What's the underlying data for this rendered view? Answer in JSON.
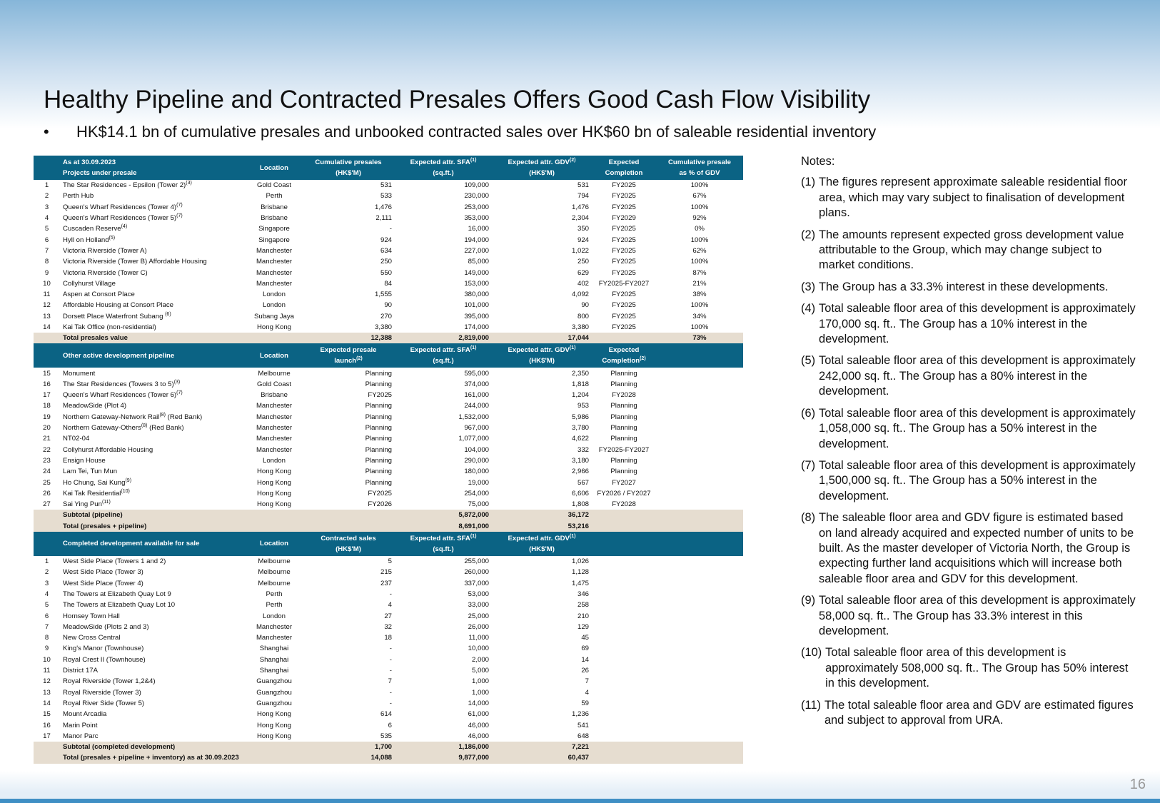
{
  "title": "Healthy Pipeline and Contracted Presales Offers Good Cash Flow Visibility",
  "bullet": {
    "marker": "•",
    "text": "HK$14.1 bn of cumulative presales and unbooked contracted sales over HK$60 bn of saleable residential inventory"
  },
  "table": {
    "sections": [
      {
        "header": [
          null,
          [
            "As at 30.09.2023",
            "Projects under presale"
          ],
          [
            "Location"
          ],
          [
            "Cumulative presales",
            "(HK$'M)"
          ],
          [
            [
              "Expected attr. SFA",
              "(1)"
            ],
            "(sq.ft.)"
          ],
          [
            [
              "Expected attr. GDV",
              "(2)"
            ],
            "(HK$'M)"
          ],
          [
            "Expected",
            "Completion"
          ],
          [
            "Cumulative presale",
            "as % of GDV"
          ]
        ],
        "rows": [
          [
            "1",
            [
              "The Star Residences - Epsilon (Tower 2)",
              "(3)"
            ],
            "Gold Coast",
            "531",
            "109,000",
            "531",
            "FY2025",
            "100%"
          ],
          [
            "2",
            "Perth Hub",
            "Perth",
            "533",
            "230,000",
            "794",
            "FY2025",
            "67%"
          ],
          [
            "3",
            [
              "Queen's Wharf Residences (Tower 4)",
              "(7)"
            ],
            "Brisbane",
            "1,476",
            "253,000",
            "1,476",
            "FY2025",
            "100%"
          ],
          [
            "4",
            [
              "Queen's Wharf Residences (Tower 5)",
              "(7)"
            ],
            "Brisbane",
            "2,111",
            "353,000",
            "2,304",
            "FY2029",
            "92%"
          ],
          [
            "5",
            [
              "Cuscaden Reserve",
              "(4)"
            ],
            "Singapore",
            "-",
            "16,000",
            "350",
            "FY2025",
            "0%"
          ],
          [
            "6",
            [
              "Hyll on Holland",
              "(5)"
            ],
            "Singapore",
            "924",
            "194,000",
            "924",
            "FY2025",
            "100%"
          ],
          [
            "7",
            "Victoria Riverside (Tower A)",
            "Manchester",
            "634",
            "227,000",
            "1,022",
            "FY2025",
            "62%"
          ],
          [
            "8",
            "Victoria Riverside (Tower B) Affordable Housing",
            "Manchester",
            "250",
            "85,000",
            "250",
            "FY2025",
            "100%"
          ],
          [
            "9",
            "Victoria Riverside (Tower C)",
            "Manchester",
            "550",
            "149,000",
            "629",
            "FY2025",
            "87%"
          ],
          [
            "10",
            "Collyhurst Village",
            "Manchester",
            "84",
            "153,000",
            "402",
            "FY2025-FY2027",
            "21%"
          ],
          [
            "11",
            "Aspen at Consort Place",
            "London",
            "1,555",
            "380,000",
            "4,092",
            "FY2025",
            "38%"
          ],
          [
            "12",
            "Affordable Housing at Consort Place",
            "London",
            "90",
            "101,000",
            "90",
            "FY2025",
            "100%"
          ],
          [
            "13",
            [
              "Dorsett Place Waterfront Subang ",
              "(6)"
            ],
            "Subang Jaya",
            "270",
            "395,000",
            "800",
            "FY2025",
            "34%"
          ],
          [
            "14",
            "Kai Tak Office (non-residential)",
            "Hong Kong",
            "3,380",
            "174,000",
            "3,380",
            "FY2025",
            "100%"
          ]
        ],
        "totals": [
          [
            null,
            "Total presales value",
            null,
            "12,388",
            "2,819,000",
            "17,044",
            null,
            "73%"
          ]
        ]
      },
      {
        "header": [
          null,
          [
            "Other active development pipeline"
          ],
          [
            "Location"
          ],
          [
            "Expected presale",
            [
              "launch",
              "(2)"
            ]
          ],
          [
            [
              "Expected attr. SFA",
              "(1)"
            ],
            "(sq.ft.)"
          ],
          [
            [
              "Expected attr. GDV",
              "(1)"
            ],
            "(HK$'M)"
          ],
          [
            "Expected",
            [
              "Completion",
              "(2)"
            ]
          ],
          null
        ],
        "rows": [
          [
            "15",
            "Monument",
            "Melbourne",
            "Planning",
            "595,000",
            "2,350",
            "Planning"
          ],
          [
            "16",
            [
              "The Star Residences (Towers 3 to 5)",
              "(3)"
            ],
            "Gold Coast",
            "Planning",
            "374,000",
            "1,818",
            "Planning"
          ],
          [
            "17",
            [
              "Queen's Wharf Residences (Tower 6)",
              "(7)"
            ],
            "Brisbane",
            "FY2025",
            "161,000",
            "1,204",
            "FY2028"
          ],
          [
            "18",
            "MeadowSide (Plot 4)",
            "Manchester",
            "Planning",
            "244,000",
            "953",
            "Planning"
          ],
          [
            "19",
            [
              "Northern Gateway-Network Rail",
              "(8)",
              " (Red Bank)"
            ],
            "Manchester",
            "Planning",
            "1,532,000",
            "5,986",
            "Planning"
          ],
          [
            "20",
            [
              "Northern Gateway-Others",
              "(8)",
              " (Red Bank)"
            ],
            "Manchester",
            "Planning",
            "967,000",
            "3,780",
            "Planning"
          ],
          [
            "21",
            "NT02-04",
            "Manchester",
            "Planning",
            "1,077,000",
            "4,622",
            "Planning"
          ],
          [
            "22",
            "Collyhurst Affordable Housing",
            "Manchester",
            "Planning",
            "104,000",
            "332",
            "FY2025-FY2027"
          ],
          [
            "23",
            "Ensign House",
            "London",
            "Planning",
            "290,000",
            "3,180",
            "Planning"
          ],
          [
            "24",
            "Lam Tei, Tun Mun",
            "Hong Kong",
            "Planning",
            "180,000",
            "2,966",
            "Planning"
          ],
          [
            "25",
            [
              "Ho Chung, Sai Kung",
              "(9)"
            ],
            "Hong Kong",
            "Planning",
            "19,000",
            "567",
            "FY2027"
          ],
          [
            "26",
            [
              "Kai Tak Residential",
              "(10)"
            ],
            "Hong Kong",
            "FY2025",
            "254,000",
            "6,606",
            "FY2026 / FY2027"
          ],
          [
            "27",
            [
              "Sai Ying Pun",
              "(11)"
            ],
            "Hong Kong",
            "FY2026",
            "75,000",
            "1,808",
            "FY2028"
          ]
        ],
        "totals": [
          [
            null,
            "Subtotal (pipeline)",
            null,
            null,
            "5,872,000",
            "36,172"
          ],
          [
            null,
            "Total (presales + pipeline)",
            null,
            null,
            "8,691,000",
            "53,216"
          ]
        ]
      },
      {
        "header": [
          null,
          [
            "Completed development available for sale"
          ],
          [
            "Location"
          ],
          [
            "Contracted sales",
            "(HK$'M)"
          ],
          [
            [
              "Expected attr. SFA",
              "(1)"
            ],
            "(sq.ft.)"
          ],
          [
            [
              "Expected attr. GDV",
              "(1)"
            ],
            "(HK$'M)"
          ],
          null,
          null
        ],
        "rows": [
          [
            "1",
            "West Side Place (Towers 1 and 2)",
            "Melbourne",
            "5",
            "255,000",
            "1,026"
          ],
          [
            "2",
            "West Side Place (Tower 3)",
            "Melbourne",
            "215",
            "260,000",
            "1,128"
          ],
          [
            "3",
            "West Side Place (Tower 4)",
            "Melbourne",
            "237",
            "337,000",
            "1,475"
          ],
          [
            "4",
            "The Towers at Elizabeth Quay Lot 9",
            "Perth",
            "-",
            "53,000",
            "346"
          ],
          [
            "5",
            "The Towers at Elizabeth Quay Lot 10",
            "Perth",
            "4",
            "33,000",
            "258"
          ],
          [
            "6",
            "Hornsey Town Hall",
            "London",
            "27",
            "25,000",
            "210"
          ],
          [
            "7",
            "MeadowSide (Plots 2 and 3)",
            "Manchester",
            "32",
            "26,000",
            "129"
          ],
          [
            "8",
            "New Cross Central",
            "Manchester",
            "18",
            "11,000",
            "45"
          ],
          [
            "9",
            "King's Manor (Townhouse)",
            "Shanghai",
            "-",
            "10,000",
            "69"
          ],
          [
            "10",
            "Royal Crest II (Townhouse)",
            "Shanghai",
            "-",
            "2,000",
            "14"
          ],
          [
            "11",
            "District 17A",
            "Shanghai",
            "-",
            "5,000",
            "26"
          ],
          [
            "12",
            "Royal Riverside (Tower 1,2&4)",
            "Guangzhou",
            "7",
            "1,000",
            "7"
          ],
          [
            "13",
            "Royal Riverside (Tower 3)",
            "Guangzhou",
            "-",
            "1,000",
            "4"
          ],
          [
            "14",
            "Royal River Side (Tower 5)",
            "Guangzhou",
            "-",
            "14,000",
            "59"
          ],
          [
            "15",
            "Mount Arcadia",
            "Hong Kong",
            "614",
            "61,000",
            "1,236"
          ],
          [
            "16",
            "Marin Point",
            "Hong Kong",
            "6",
            "46,000",
            "541"
          ],
          [
            "17",
            "Manor Parc",
            "Hong Kong",
            "535",
            "46,000",
            "648"
          ]
        ],
        "totals": [
          [
            null,
            "Subtotal (completed development)",
            null,
            "1,700",
            "1,186,000",
            "7,221"
          ],
          [
            null,
            "Total (presales + pipeline + inventory) as at 30.09.2023",
            null,
            "14,088",
            "9,877,000",
            "60,437"
          ]
        ]
      }
    ]
  },
  "notes": {
    "heading": "Notes:",
    "items": [
      [
        "(1)",
        "The figures represent approximate saleable residential floor area, which may vary subject to finalisation of development plans."
      ],
      [
        "(2)",
        "The amounts represent expected gross development value attributable to the Group, which may change subject to market conditions."
      ],
      [
        "(3)",
        "The Group has a 33.3% interest in these developments."
      ],
      [
        "(4)",
        "Total saleable floor area of this development is approximately 170,000 sq. ft.. The Group has a 10% interest in the development."
      ],
      [
        "(5)",
        "Total saleable floor area of this development is approximately 242,000 sq. ft.. The Group has a 80% interest in the development."
      ],
      [
        "(6)",
        "Total saleable floor area of this development is approximately 1,058,000 sq. ft.. The Group has a 50% interest in the development."
      ],
      [
        "(7)",
        "Total saleable floor area of this development is approximately 1,500,000 sq. ft.. The Group has a 50% interest in the development."
      ],
      [
        "(8)",
        "The saleable floor area and GDV figure is estimated based on land already acquired and expected number of units to be built. As the master developer of Victoria North, the Group is expecting further land acquisitions which will increase both saleable floor area and GDV for this development."
      ],
      [
        "(9)",
        "Total saleable floor area of this development is approximately 58,000 sq. ft.. The Group has 33.3% interest in this development."
      ],
      [
        "(10)",
        "Total saleable floor area of this development is approximately 508,000 sq. ft.. The Group has 50% interest in this development."
      ],
      [
        "(11)",
        "The total saleable floor area and GDV are estimated figures and subject to approval from URA."
      ]
    ]
  },
  "page_number": "16"
}
